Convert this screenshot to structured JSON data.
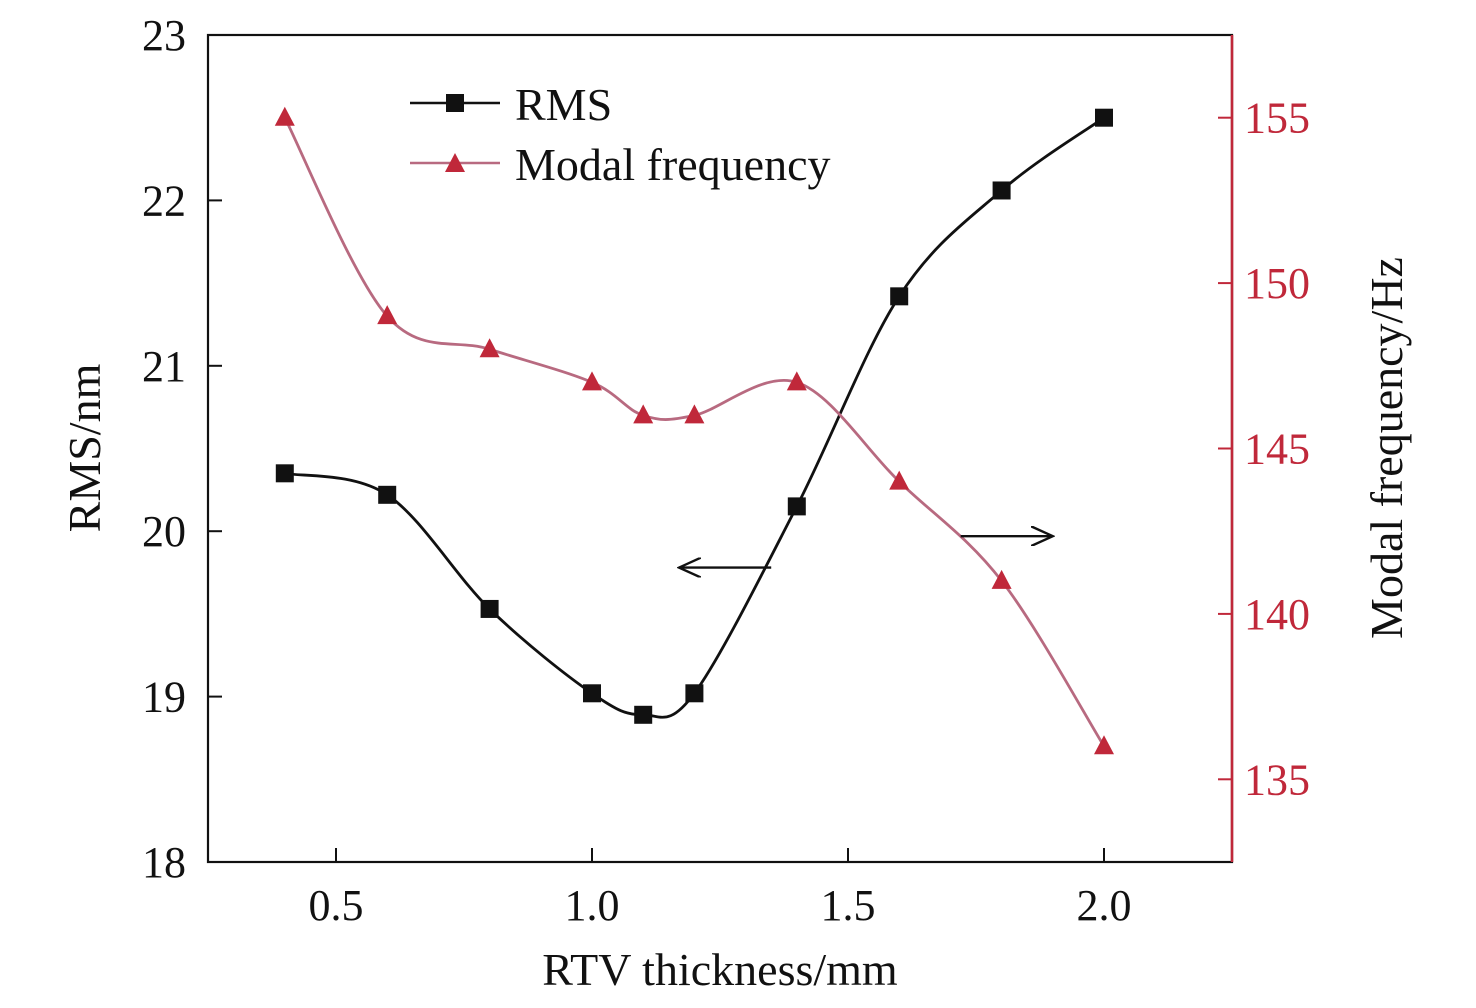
{
  "chart_data": {
    "type": "line",
    "xlabel": "RTV thickness/mm",
    "ylabel_left": "RMS/nm",
    "ylabel_right": "Modal frequency/Hz",
    "xlim": [
      0.25,
      2.25
    ],
    "ylim_left": [
      18,
      23
    ],
    "ylim_right": [
      132.5,
      157.5
    ],
    "x_ticks": [
      "0.5",
      "1.0",
      "1.5",
      "2.0"
    ],
    "y_left_ticks": [
      "18",
      "19",
      "20",
      "21",
      "22",
      "23"
    ],
    "y_right_ticks": [
      "135",
      "140",
      "145",
      "150",
      "155"
    ],
    "x": [
      0.4,
      0.6,
      0.8,
      1.0,
      1.1,
      1.2,
      1.4,
      1.6,
      1.8,
      2.0
    ],
    "series": [
      {
        "name": "RMS",
        "axis": "left",
        "marker": "square",
        "color": "#111111",
        "values": [
          20.35,
          20.22,
          19.53,
          19.02,
          18.89,
          19.02,
          20.15,
          21.42,
          22.06,
          22.5
        ]
      },
      {
        "name": "Modal frequency",
        "axis": "right",
        "marker": "triangle",
        "color": "#c0283a",
        "line_color": "#b86a80",
        "values": [
          155,
          149,
          148,
          147,
          146,
          146,
          147,
          144,
          141,
          136
        ]
      }
    ],
    "annotations": [
      {
        "type": "arrow",
        "direction": "left",
        "indicates": "RMS axis",
        "x_from": 1.35,
        "x_to": 1.17,
        "y": 19.78
      },
      {
        "type": "arrow",
        "direction": "right",
        "indicates": "Modal frequency axis",
        "x_from": 1.72,
        "x_to": 1.9,
        "y": 19.97
      }
    ],
    "legend_position": "top-center",
    "grid": false
  }
}
